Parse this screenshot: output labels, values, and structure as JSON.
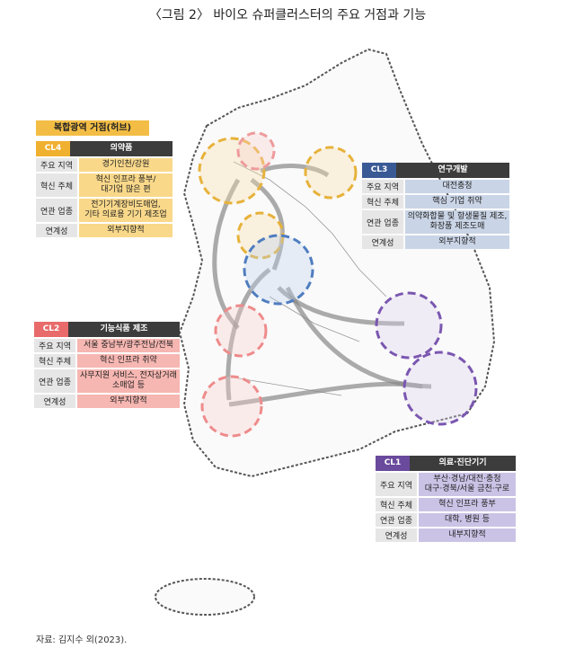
{
  "title": "〈그림 2〉 바이오 슈퍼클러스터의 주요 거점과 기능",
  "hub_label": "복합광역 거점(허브)",
  "clusters": [
    {
      "code": "CL4",
      "name": "의약품",
      "rows": [
        {
          "label": "주요 지역",
          "value": [
            "경기인천/강원"
          ]
        },
        {
          "label": "혁신 주체",
          "value": [
            "혁신 인프라 풍부/",
            "대기업 많은 편"
          ]
        },
        {
          "label": "연관 업종",
          "value": [
            "전기기계장비도매업,",
            "기타 의료용 기기 제조업"
          ]
        },
        {
          "label": "연계성",
          "value": [
            "외부지향적"
          ]
        }
      ]
    },
    {
      "code": "CL3",
      "name": "연구개발",
      "rows": [
        {
          "label": "주요 지역",
          "value": [
            "대전충청"
          ]
        },
        {
          "label": "혁신 주체",
          "value": [
            "핵심 기업 취약"
          ]
        },
        {
          "label": "연관 업종",
          "value": [
            "의약화합물 및 항생물질 제조,",
            "화장품 제조도매"
          ]
        },
        {
          "label": "연계성",
          "value": [
            "외부지향적"
          ]
        }
      ]
    },
    {
      "code": "CL2",
      "name": "기능식품 제조",
      "rows": [
        {
          "label": "주요 지역",
          "value": [
            "서울 중남부/광주전남/전북"
          ]
        },
        {
          "label": "혁신 주체",
          "value": [
            "혁신 인프라 취약"
          ]
        },
        {
          "label": "연관 업종",
          "value": [
            "사무지원 서비스, 전자상거래",
            "소매업 등"
          ]
        },
        {
          "label": "연계성",
          "value": [
            "외부지향적"
          ]
        }
      ]
    },
    {
      "code": "CL1",
      "name": "의료·진단기기",
      "rows": [
        {
          "label": "주요 지역",
          "value": [
            "부산·경남/대전·충청",
            "대구·경북/서울 금천·구로"
          ]
        },
        {
          "label": "혁신 주체",
          "value": [
            "혁신 인프라 풍부"
          ]
        },
        {
          "label": "연관 업종",
          "value": [
            "대학, 병원 등"
          ]
        },
        {
          "label": "연계성",
          "value": [
            "내부지향적"
          ]
        }
      ]
    }
  ],
  "source": "자료: 김지수 외(2023)."
}
